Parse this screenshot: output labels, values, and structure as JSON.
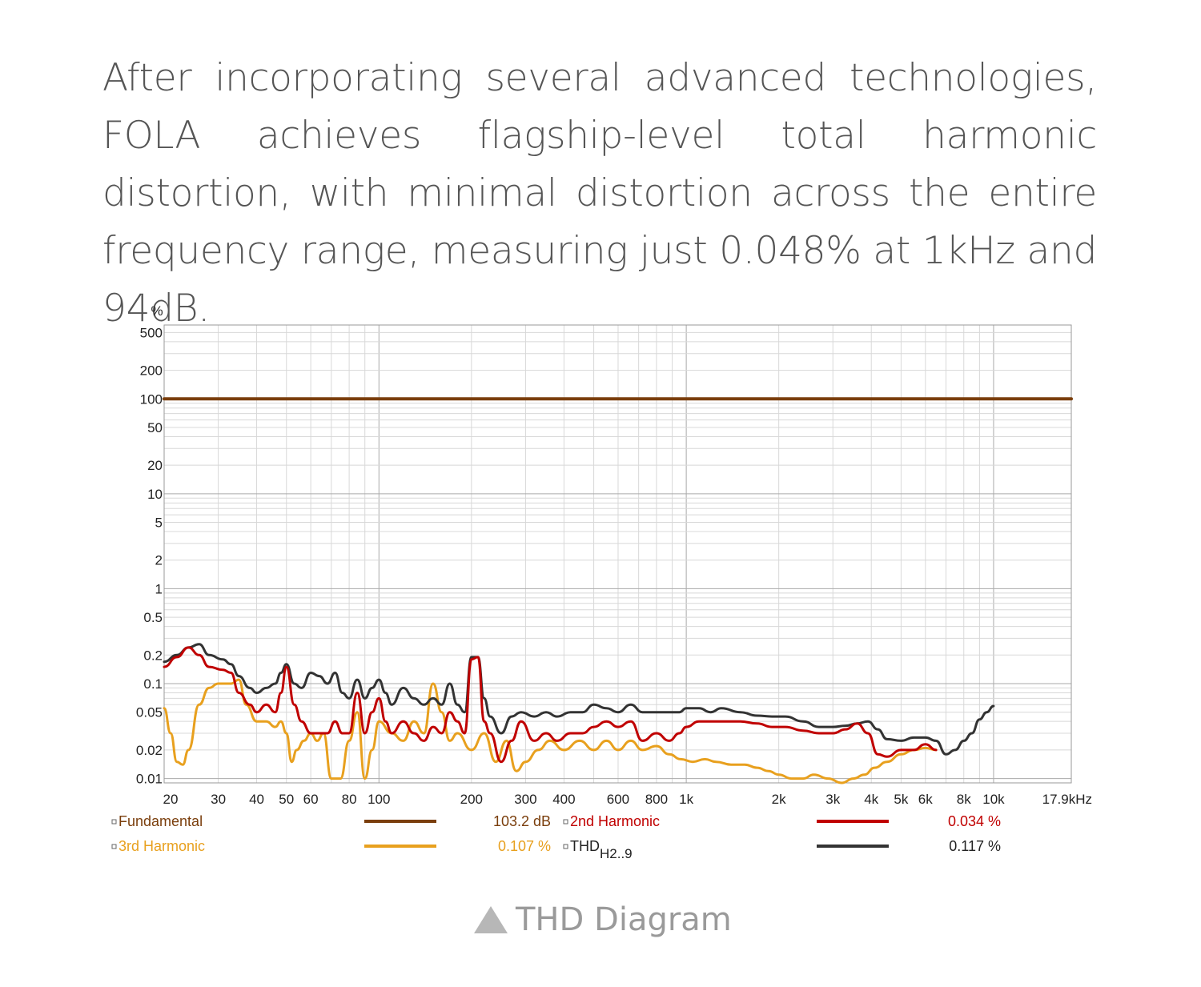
{
  "intro_text": "After incorporating several advanced technologies, FOLA achieves flagship-level total harmonic distortion, with minimal distortion across the entire frequency range, measuring just 0.048% at 1kHz and 94dB.",
  "caption": "THD Diagram",
  "icons": {
    "caption_marker": "triangle-up-icon",
    "legend_checkbox": "checkbox-icon"
  },
  "colors": {
    "fundamental": "#7a3e0c",
    "second": "#c00000",
    "third": "#e8a01e",
    "thd": "#333333",
    "grid": "#d8d8d8",
    "grid_major": "#aaaaaa",
    "text": "#222222",
    "caption": "#9a9a9a"
  },
  "chart_data": {
    "type": "line",
    "title": "",
    "xlabel": "",
    "ylabel": "%",
    "x_scale": "log",
    "y_scale": "log",
    "xlim": [
      20,
      17900
    ],
    "ylim": [
      0.009,
      600
    ],
    "grid": true,
    "x_ticks": [
      {
        "v": 20,
        "label": "20"
      },
      {
        "v": 30,
        "label": "30"
      },
      {
        "v": 40,
        "label": "40"
      },
      {
        "v": 50,
        "label": "50"
      },
      {
        "v": 60,
        "label": "60"
      },
      {
        "v": 80,
        "label": "80"
      },
      {
        "v": 100,
        "label": "100"
      },
      {
        "v": 200,
        "label": "200"
      },
      {
        "v": 300,
        "label": "300"
      },
      {
        "v": 400,
        "label": "400"
      },
      {
        "v": 600,
        "label": "600"
      },
      {
        "v": 800,
        "label": "800"
      },
      {
        "v": 1000,
        "label": "1k"
      },
      {
        "v": 2000,
        "label": "2k"
      },
      {
        "v": 3000,
        "label": "3k"
      },
      {
        "v": 4000,
        "label": "4k"
      },
      {
        "v": 5000,
        "label": "5k"
      },
      {
        "v": 6000,
        "label": "6k"
      },
      {
        "v": 8000,
        "label": "8k"
      },
      {
        "v": 10000,
        "label": "10k"
      },
      {
        "v": 17900,
        "label": "17.9kHz"
      }
    ],
    "y_ticks": [
      {
        "v": 500,
        "label": "500"
      },
      {
        "v": 200,
        "label": "200"
      },
      {
        "v": 100,
        "label": "100"
      },
      {
        "v": 50,
        "label": "50"
      },
      {
        "v": 20,
        "label": "20"
      },
      {
        "v": 10,
        "label": "10"
      },
      {
        "v": 5,
        "label": "5"
      },
      {
        "v": 2,
        "label": "2"
      },
      {
        "v": 1,
        "label": "1"
      },
      {
        "v": 0.5,
        "label": "0.5"
      },
      {
        "v": 0.2,
        "label": "0.2"
      },
      {
        "v": 0.1,
        "label": "0.1"
      },
      {
        "v": 0.05,
        "label": "0.05"
      },
      {
        "v": 0.02,
        "label": "0.02"
      },
      {
        "v": 0.01,
        "label": "0.01"
      }
    ],
    "legend": [
      {
        "name": "Fundamental",
        "value": "103.2 dB",
        "color": "#7a3e0c"
      },
      {
        "name": "2nd Harmonic",
        "value": "0.034 %",
        "color": "#c00000"
      },
      {
        "name": "3rd Harmonic",
        "value": "0.107 %",
        "color": "#e8a01e"
      },
      {
        "name": "THD",
        "name_sub": "H2..9",
        "value": "0.117 %",
        "color": "#333333"
      }
    ],
    "series": [
      {
        "name": "Fundamental",
        "x": [
          20,
          17900
        ],
        "y": [
          100,
          100
        ]
      },
      {
        "name": "THD H2..9",
        "x": [
          20,
          22,
          24,
          26,
          28,
          31,
          33,
          35,
          38,
          40,
          43,
          46,
          48,
          50,
          53,
          56,
          60,
          64,
          68,
          72,
          76,
          80,
          85,
          90,
          95,
          100,
          105,
          110,
          120,
          130,
          140,
          150,
          160,
          170,
          180,
          190,
          200,
          210,
          220,
          230,
          250,
          270,
          290,
          320,
          350,
          380,
          420,
          460,
          500,
          550,
          600,
          660,
          720,
          800,
          880,
          950,
          1000,
          1100,
          1200,
          1300,
          1500,
          1700,
          1900,
          2100,
          2400,
          2700,
          3000,
          3300,
          3600,
          3900,
          4200,
          4500,
          5000,
          5500,
          6000,
          6500,
          7000,
          7500,
          8000,
          8500,
          9000,
          9500,
          10000
        ],
        "y": [
          0.17,
          0.2,
          0.24,
          0.26,
          0.2,
          0.18,
          0.16,
          0.12,
          0.09,
          0.08,
          0.09,
          0.1,
          0.13,
          0.16,
          0.1,
          0.09,
          0.13,
          0.12,
          0.1,
          0.13,
          0.08,
          0.07,
          0.11,
          0.07,
          0.09,
          0.11,
          0.08,
          0.06,
          0.09,
          0.07,
          0.06,
          0.07,
          0.06,
          0.1,
          0.06,
          0.05,
          0.19,
          0.19,
          0.07,
          0.045,
          0.03,
          0.045,
          0.05,
          0.045,
          0.05,
          0.045,
          0.05,
          0.05,
          0.06,
          0.055,
          0.05,
          0.06,
          0.05,
          0.05,
          0.05,
          0.05,
          0.055,
          0.055,
          0.05,
          0.055,
          0.05,
          0.046,
          0.045,
          0.045,
          0.04,
          0.035,
          0.035,
          0.036,
          0.038,
          0.04,
          0.033,
          0.026,
          0.025,
          0.027,
          0.027,
          0.025,
          0.018,
          0.02,
          0.025,
          0.03,
          0.042,
          0.05,
          0.058
        ]
      },
      {
        "name": "2nd Harmonic",
        "x": [
          20,
          22,
          24,
          26,
          28,
          31,
          33,
          35,
          38,
          40,
          43,
          46,
          48,
          50,
          53,
          56,
          60,
          64,
          68,
          72,
          76,
          80,
          85,
          90,
          95,
          100,
          105,
          110,
          120,
          130,
          140,
          150,
          160,
          170,
          180,
          190,
          200,
          210,
          220,
          230,
          250,
          270,
          290,
          320,
          350,
          380,
          420,
          460,
          500,
          550,
          600,
          660,
          720,
          800,
          880,
          950,
          1000,
          1100,
          1200,
          1300,
          1500,
          1700,
          1900,
          2100,
          2400,
          2700,
          3000,
          3300,
          3600,
          3900,
          4200,
          4500,
          5000,
          5500,
          6000,
          6500
        ],
        "y": [
          0.15,
          0.19,
          0.24,
          0.2,
          0.15,
          0.14,
          0.13,
          0.08,
          0.06,
          0.05,
          0.06,
          0.05,
          0.08,
          0.15,
          0.06,
          0.04,
          0.03,
          0.03,
          0.03,
          0.04,
          0.03,
          0.03,
          0.08,
          0.03,
          0.05,
          0.07,
          0.04,
          0.03,
          0.04,
          0.03,
          0.025,
          0.035,
          0.03,
          0.05,
          0.04,
          0.03,
          0.18,
          0.19,
          0.04,
          0.03,
          0.015,
          0.025,
          0.04,
          0.025,
          0.03,
          0.025,
          0.03,
          0.03,
          0.035,
          0.04,
          0.035,
          0.04,
          0.025,
          0.03,
          0.025,
          0.03,
          0.035,
          0.04,
          0.04,
          0.04,
          0.04,
          0.038,
          0.035,
          0.035,
          0.032,
          0.03,
          0.03,
          0.033,
          0.038,
          0.03,
          0.018,
          0.017,
          0.02,
          0.02,
          0.023,
          0.02
        ]
      },
      {
        "name": "3rd Harmonic",
        "x": [
          20,
          21,
          22,
          23,
          24,
          26,
          28,
          30,
          33,
          35,
          37,
          40,
          43,
          46,
          48,
          50,
          52,
          54,
          57,
          60,
          63,
          66,
          70,
          75,
          80,
          85,
          90,
          95,
          100,
          110,
          120,
          130,
          140,
          150,
          160,
          170,
          180,
          200,
          220,
          240,
          260,
          280,
          300,
          330,
          360,
          400,
          450,
          500,
          550,
          600,
          660,
          720,
          800,
          880,
          960,
          1050,
          1150,
          1250,
          1400,
          1550,
          1700,
          1850,
          2000,
          2200,
          2400,
          2600,
          2900,
          3200,
          3500,
          3800,
          4100,
          4500,
          5000,
          5500,
          6000,
          6500
        ],
        "y": [
          0.055,
          0.03,
          0.015,
          0.014,
          0.02,
          0.06,
          0.09,
          0.1,
          0.1,
          0.11,
          0.06,
          0.04,
          0.04,
          0.035,
          0.04,
          0.03,
          0.015,
          0.02,
          0.025,
          0.03,
          0.025,
          0.03,
          0.01,
          0.01,
          0.025,
          0.05,
          0.01,
          0.02,
          0.04,
          0.03,
          0.025,
          0.04,
          0.03,
          0.1,
          0.05,
          0.025,
          0.03,
          0.02,
          0.03,
          0.015,
          0.025,
          0.012,
          0.015,
          0.02,
          0.025,
          0.02,
          0.025,
          0.02,
          0.025,
          0.02,
          0.025,
          0.02,
          0.022,
          0.018,
          0.016,
          0.015,
          0.016,
          0.015,
          0.014,
          0.014,
          0.013,
          0.012,
          0.011,
          0.01,
          0.01,
          0.011,
          0.01,
          0.009,
          0.01,
          0.011,
          0.013,
          0.015,
          0.018,
          0.02,
          0.021,
          0.02
        ]
      }
    ]
  }
}
